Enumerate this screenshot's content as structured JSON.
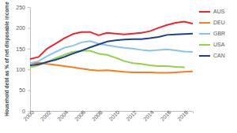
{
  "chart_data": {
    "type": "line",
    "y_label": "Household debt as % of net disposable income",
    "x": [
      2000,
      2001,
      2002,
      2003,
      2004,
      2005,
      2006,
      2007,
      2008,
      2009,
      2010,
      2011,
      2012,
      2013,
      2014,
      2015,
      2016,
      2017,
      2018,
      2019
    ],
    "series": [
      {
        "name": "AUS",
        "color": "#e8262b",
        "values": [
          125,
          130,
          150,
          162,
          175,
          185,
          190,
          190,
          182,
          188,
          186,
          184,
          186,
          188,
          192,
          200,
          207,
          212,
          215,
          210
        ]
      },
      {
        "name": "DEU",
        "color": "#f07f2a",
        "values": [
          115,
          116,
          113,
          111,
          108,
          105,
          102,
          99,
          97,
          98,
          96,
          94,
          93,
          93,
          93,
          92,
          92,
          93,
          94,
          95
        ]
      },
      {
        "name": "GBR",
        "color": "#8cc4e8",
        "values": [
          115,
          120,
          132,
          142,
          152,
          157,
          165,
          168,
          162,
          158,
          155,
          152,
          150,
          147,
          145,
          147,
          148,
          146,
          143,
          142
        ]
      },
      {
        "name": "USA",
        "color": "#92d050",
        "values": [
          105,
          110,
          118,
          127,
          135,
          142,
          145,
          145,
          138,
          135,
          128,
          120,
          115,
          113,
          110,
          108,
          108,
          106,
          105,
          null
        ]
      },
      {
        "name": "CAN",
        "color": "#1f3e8a",
        "values": [
          110,
          112,
          118,
          123,
          130,
          138,
          145,
          153,
          160,
          167,
          170,
          172,
          173,
          173,
          175,
          178,
          183,
          184,
          185,
          186
        ]
      }
    ],
    "xlim": [
      2000,
      2019
    ],
    "xticks": [
      2000,
      2002,
      2004,
      2006,
      2008,
      2010,
      2012,
      2014,
      2016,
      2018
    ],
    "ylim": [
      0,
      250
    ],
    "yticks": [
      0,
      50,
      100,
      150,
      200,
      250
    ],
    "grid": false,
    "legend": "right"
  }
}
